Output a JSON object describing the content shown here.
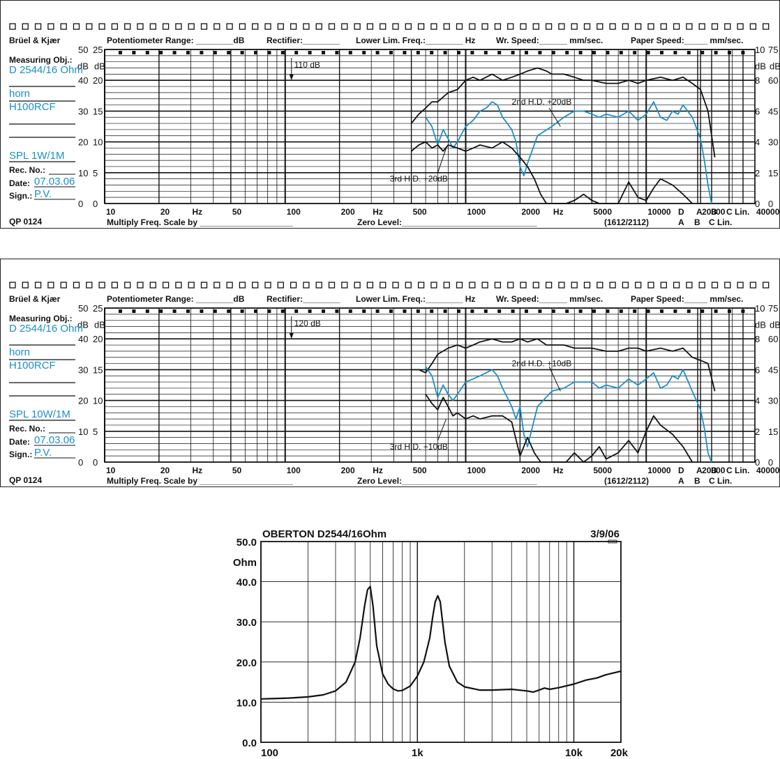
{
  "record_header": {
    "brand": "Brüel & Kjær",
    "potentiometer": "Potentiometer Range: ________dB",
    "rectifier": "Rectifier:________",
    "lower_lim": "Lower Lim. Freq.:________ Hz",
    "wr_speed": "Wr.  Speed:______ mm/sec.",
    "paper_speed": "Paper Speed:_____ mm/sec.",
    "measuring_obj": "Measuring Obj.:",
    "rec_no": "Rec.  No.:",
    "date": "Date:",
    "sign": "Sign.:",
    "qp": "QP  0124",
    "multiply": "Multiply Freq. Scale by ____________________",
    "zero_level": "Zero Level:_____________________________",
    "code": "(1612/2112)",
    "db_label": "dB",
    "hz_label": "Hz",
    "left_scale_a": [
      "50",
      "40",
      "30",
      "20",
      "10",
      "0"
    ],
    "left_scale_b": [
      "25",
      "20",
      "15",
      "10",
      "5",
      "0"
    ],
    "right_scale_a": [
      "10",
      "8",
      "6",
      "4",
      "2",
      "0"
    ],
    "right_scale_b": [
      "75",
      "60",
      "45",
      "30",
      "15",
      "0"
    ],
    "freq_labels": [
      "10",
      "20",
      "Hz",
      "50",
      "100",
      "200",
      "Hz",
      "500",
      "1000",
      "2000",
      "Hz",
      "5000",
      "10000",
      "20000",
      "40000"
    ],
    "weight_labels_top": [
      "D",
      "A",
      "B",
      "C Lin."
    ],
    "weight_labels_bottom": [
      "A",
      "B",
      "C Lin."
    ]
  },
  "chart_data": [
    {
      "type": "line",
      "obj": "D 2544/16 Ohm",
      "obj2": "horn",
      "obj3": "H100RCF",
      "spl": "SPL 1W/1M",
      "date_val": "07.03.06",
      "sign_val": "P.V.",
      "ref_level": "110 dB",
      "annot_2nd": "2nd H.D. +20dB",
      "annot_3rd": "3rd H.D. +20dB",
      "x_scale": "log",
      "xlim": [
        10,
        40000
      ],
      "ylim": [
        0,
        50
      ],
      "ylabel": "dB",
      "series": [
        {
          "color": "#111111",
          "x": [
            500,
            550,
            600,
            650,
            700,
            800,
            900,
            1000,
            1100,
            1200,
            1400,
            1600,
            1800,
            2000,
            2200,
            2500,
            2800,
            3000,
            3500,
            4000,
            4500,
            5000,
            6000,
            7000,
            8000,
            9000,
            10000,
            12000,
            14000,
            16000,
            18000,
            20000,
            22000,
            24000
          ],
          "y": [
            26,
            29,
            31,
            33,
            33,
            36,
            37,
            40,
            41,
            40,
            42,
            40,
            41,
            42,
            43,
            44,
            43,
            42,
            42,
            41,
            40,
            40,
            39,
            39,
            40,
            39,
            40,
            41,
            40,
            41,
            39,
            37,
            30,
            15
          ]
        },
        {
          "color": "#1a8fc9",
          "x": [
            600,
            650,
            700,
            750,
            800,
            850,
            900,
            1000,
            1100,
            1200,
            1300,
            1400,
            1500,
            1600,
            1700,
            1800,
            1900,
            2000,
            2100,
            2200,
            2500,
            3000,
            3500,
            4000,
            4500,
            5000,
            5500,
            6000,
            7000,
            8000,
            9000,
            10000,
            11000,
            12000,
            13000,
            14000,
            15000,
            16000,
            18000,
            20000,
            21000,
            22000,
            23000
          ],
          "y": [
            28,
            25,
            19,
            24,
            21,
            18,
            20,
            25,
            27,
            30,
            31,
            33,
            32,
            28,
            26,
            24,
            20,
            12,
            9,
            13,
            22,
            25,
            28,
            30,
            30,
            29,
            28,
            29,
            28,
            30,
            27,
            29,
            33,
            28,
            27,
            30,
            29,
            32,
            28,
            21,
            14,
            6,
            0
          ]
        },
        {
          "color": "#111111",
          "x": [
            500,
            550,
            600,
            650,
            700,
            750,
            800,
            900,
            1000,
            1100,
            1200,
            1400,
            1600,
            1800,
            2000,
            2200,
            2400,
            2600,
            2800,
            3200,
            3600,
            4000,
            4500,
            5000,
            5500,
            6000,
            7000,
            8000,
            9000,
            10000,
            11000,
            12000,
            14000,
            16000,
            18000
          ],
          "y": [
            17,
            19,
            20,
            18,
            19,
            17,
            19,
            18,
            17,
            18,
            19,
            18,
            20,
            18,
            15,
            12,
            8,
            3,
            0,
            0,
            0,
            1,
            3,
            1,
            0,
            0,
            0,
            7,
            2,
            1,
            5,
            8,
            6,
            3,
            0
          ]
        }
      ]
    },
    {
      "type": "line",
      "obj": "D 2544/16 Ohm",
      "obj2": "horn",
      "obj3": "H100RCF",
      "spl": "SPL 10W/1M",
      "date_val": "07.03.06",
      "sign_val": "P.V.",
      "ref_level": "120 dB",
      "annot_2nd": "2nd H.D. +10dB",
      "annot_3rd": "3rd H.D. +10dB",
      "x_scale": "log",
      "xlim": [
        10,
        40000
      ],
      "ylim": [
        0,
        50
      ],
      "ylabel": "dB",
      "series": [
        {
          "color": "#111111",
          "x": [
            500,
            550,
            600,
            650,
            700,
            800,
            900,
            1000,
            1100,
            1200,
            1400,
            1600,
            1800,
            2000,
            2200,
            2500,
            2800,
            3000,
            3500,
            4000,
            4500,
            5000,
            6000,
            7000,
            8000,
            9000,
            10000,
            12000,
            14000,
            16000,
            18000,
            20000,
            22000,
            24000
          ],
          "y": [
            30,
            30,
            29,
            32,
            35,
            37,
            38,
            37,
            38,
            39,
            40,
            39,
            39,
            40,
            39,
            40,
            38,
            38,
            38,
            37,
            37,
            37,
            36,
            36,
            37,
            37,
            36,
            37,
            36,
            37,
            34,
            33,
            32,
            23
          ]
        },
        {
          "color": "#1a8fc9",
          "x": [
            600,
            650,
            700,
            750,
            800,
            850,
            900,
            1000,
            1100,
            1200,
            1300,
            1400,
            1500,
            1600,
            1700,
            1800,
            1900,
            2000,
            2100,
            2200,
            2500,
            3000,
            3500,
            4000,
            4500,
            5000,
            5500,
            6000,
            7000,
            8000,
            9000,
            10000,
            11000,
            12000,
            13000,
            14000,
            15000,
            16000,
            18000,
            20000,
            21000,
            22000,
            23000
          ],
          "y": [
            31,
            28,
            21,
            25,
            22,
            20,
            22,
            26,
            27,
            28,
            29,
            30,
            28,
            24,
            21,
            18,
            14,
            18,
            9,
            5,
            18,
            23,
            24,
            26,
            26,
            26,
            24,
            25,
            24,
            27,
            25,
            27,
            29,
            24,
            25,
            28,
            27,
            30,
            23,
            17,
            11,
            3,
            0
          ]
        },
        {
          "color": "#111111",
          "x": [
            600,
            650,
            700,
            750,
            800,
            850,
            900,
            1000,
            1100,
            1200,
            1400,
            1600,
            1800,
            2000,
            2200,
            2400,
            2600,
            2800,
            3200,
            3600,
            4000,
            4500,
            5000,
            5500,
            6000,
            7000,
            8000,
            9000,
            10000,
            11000,
            12000,
            14000,
            16000,
            18000
          ],
          "y": [
            22,
            19,
            17,
            21,
            18,
            15,
            16,
            14,
            15,
            14,
            15,
            15,
            13,
            2,
            8,
            3,
            0,
            0,
            0,
            0,
            3,
            0,
            2,
            5,
            1,
            3,
            7,
            3,
            10,
            15,
            12,
            9,
            5,
            0
          ]
        }
      ]
    },
    {
      "type": "line",
      "title": "OBERTON D2544/16Ohm",
      "date": "3/9/06",
      "ylabel": "Ohm",
      "x_scale": "log",
      "xlim": [
        100,
        20000
      ],
      "ylim": [
        0,
        50
      ],
      "y_ticks": [
        "50.0",
        "40.0",
        "30.0",
        "20.0",
        "10.0",
        "0.0"
      ],
      "x_ticks": [
        "100",
        "1k",
        "10k",
        "20k"
      ],
      "series": [
        {
          "color": "#111111",
          "x": [
            100,
            150,
            200,
            250,
            300,
            350,
            400,
            430,
            460,
            480,
            500,
            520,
            550,
            600,
            650,
            700,
            750,
            800,
            900,
            1000,
            1100,
            1200,
            1250,
            1300,
            1350,
            1400,
            1500,
            1600,
            1800,
            2000,
            2500,
            3000,
            4000,
            5000,
            5500,
            6000,
            6500,
            7000,
            8000,
            10000,
            12000,
            14000,
            16000,
            18000,
            20000
          ],
          "y": [
            10.8,
            11.0,
            11.3,
            11.8,
            12.8,
            15.0,
            20.0,
            26.0,
            34.0,
            38.0,
            38.8,
            34.0,
            24.0,
            17.0,
            14.5,
            13.3,
            12.8,
            12.9,
            14.0,
            16.5,
            20.0,
            26.0,
            31.0,
            35.0,
            36.5,
            35.0,
            25.0,
            19.0,
            15.0,
            13.8,
            13.0,
            13.0,
            13.2,
            12.8,
            12.5,
            13.0,
            13.5,
            13.2,
            13.6,
            14.5,
            15.5,
            16.0,
            16.8,
            17.3,
            17.7
          ]
        }
      ]
    }
  ]
}
